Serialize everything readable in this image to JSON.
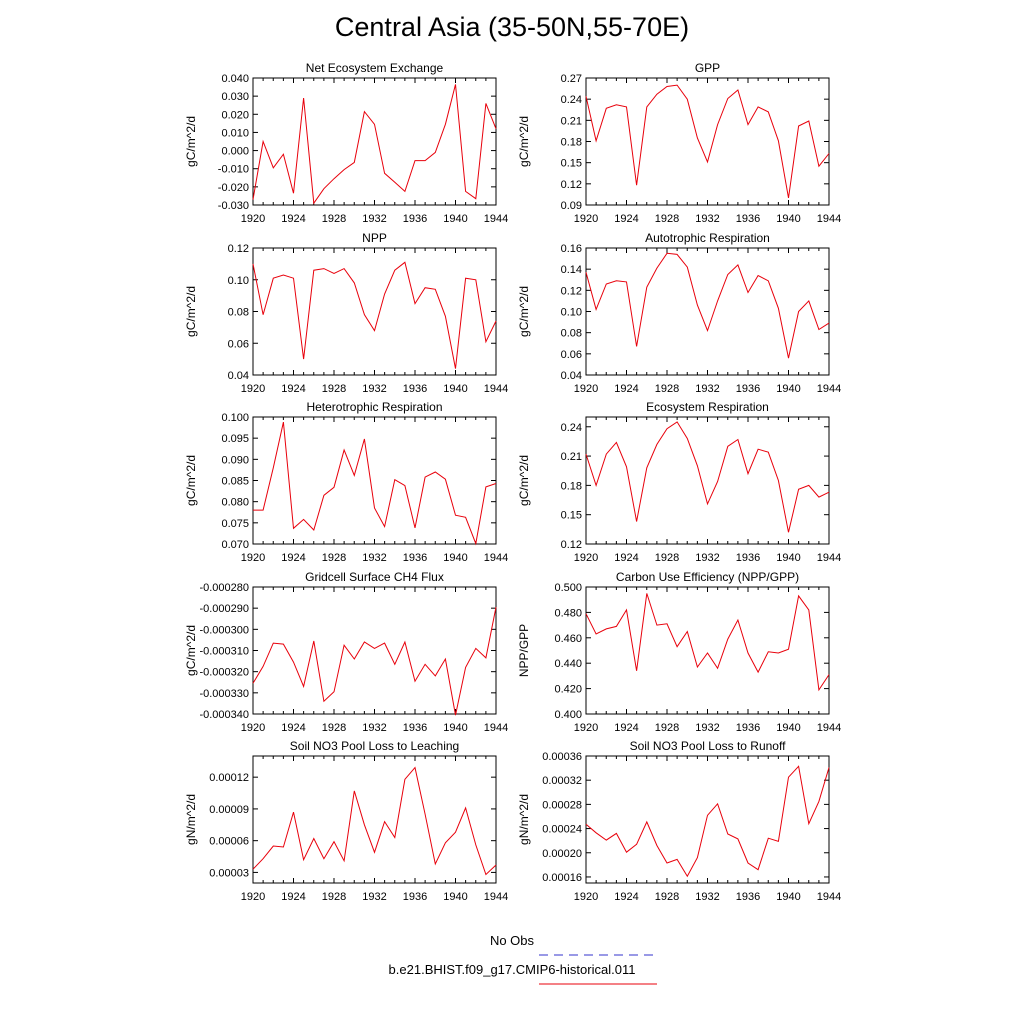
{
  "title": "Central Asia (35-50N,55-70E)",
  "legend": {
    "obs_label": "No Obs",
    "obs_color": "#3333cc",
    "run_label": "b.e21.BHIST.f09_g17.CMIP6-historical.011",
    "run_color": "#e8000b"
  },
  "chart_data": [
    {
      "type": "line",
      "title": "Net Ecosystem Exchange",
      "ylabel": "gC/m^2/d",
      "ylim": [
        -0.03,
        0.04
      ],
      "yticks": [
        "0.040",
        "0.030",
        "0.020",
        "0.010",
        "0.000",
        "-0.010",
        "-0.020",
        "-0.030"
      ],
      "ytick_values": [
        0.04,
        0.03,
        0.02,
        0.01,
        0.0,
        -0.01,
        -0.02,
        -0.03
      ],
      "xlim": [
        1920,
        1944
      ],
      "xticks": [
        "1920",
        "1924",
        "1928",
        "1932",
        "1936",
        "1940",
        "1944"
      ],
      "x": [
        1920,
        1921,
        1922,
        1923,
        1924,
        1925,
        1926,
        1927,
        1928,
        1929,
        1930,
        1931,
        1932,
        1933,
        1934,
        1935,
        1936,
        1937,
        1938,
        1939,
        1940,
        1941,
        1942,
        1943,
        1944
      ],
      "series": [
        {
          "values": [
            -0.027,
            0.005,
            -0.0095,
            -0.002,
            -0.0235,
            0.029,
            -0.029,
            -0.021,
            -0.0155,
            -0.0105,
            -0.0065,
            0.0215,
            0.0145,
            -0.0125,
            -0.0175,
            -0.0225,
            -0.0055,
            -0.0055,
            -0.001,
            0.0145,
            0.0365,
            -0.0225,
            -0.0265,
            0.026,
            0.012
          ]
        }
      ]
    },
    {
      "type": "line",
      "title": "GPP",
      "ylabel": "gC/m^2/d",
      "ylim": [
        0.09,
        0.27
      ],
      "yticks": [
        "0.27",
        "0.24",
        "0.21",
        "0.18",
        "0.15",
        "0.12",
        "0.09"
      ],
      "ytick_values": [
        0.27,
        0.24,
        0.21,
        0.18,
        0.15,
        0.12,
        0.09
      ],
      "xlim": [
        1920,
        1944
      ],
      "xticks": [
        "1920",
        "1924",
        "1928",
        "1932",
        "1936",
        "1940",
        "1944"
      ],
      "x": [
        1920,
        1921,
        1922,
        1923,
        1924,
        1925,
        1926,
        1927,
        1928,
        1929,
        1930,
        1931,
        1932,
        1933,
        1934,
        1935,
        1936,
        1937,
        1938,
        1939,
        1940,
        1941,
        1942,
        1943,
        1944
      ],
      "series": [
        {
          "values": [
            0.244,
            0.181,
            0.227,
            0.232,
            0.229,
            0.118,
            0.229,
            0.247,
            0.258,
            0.26,
            0.24,
            0.185,
            0.151,
            0.204,
            0.241,
            0.253,
            0.204,
            0.229,
            0.222,
            0.181,
            0.1,
            0.202,
            0.209,
            0.145,
            0.163
          ]
        }
      ]
    },
    {
      "type": "line",
      "title": "NPP",
      "ylabel": "gC/m^2/d",
      "ylim": [
        0.04,
        0.12
      ],
      "yticks": [
        "0.12",
        "0.10",
        "0.08",
        "0.06",
        "0.04"
      ],
      "ytick_values": [
        0.12,
        0.1,
        0.08,
        0.06,
        0.04
      ],
      "xlim": [
        1920,
        1944
      ],
      "xticks": [
        "1920",
        "1924",
        "1928",
        "1932",
        "1936",
        "1940",
        "1944"
      ],
      "x": [
        1920,
        1921,
        1922,
        1923,
        1924,
        1925,
        1926,
        1927,
        1928,
        1929,
        1930,
        1931,
        1932,
        1933,
        1934,
        1935,
        1936,
        1937,
        1938,
        1939,
        1940,
        1941,
        1942,
        1943,
        1944
      ],
      "series": [
        {
          "values": [
            0.11,
            0.078,
            0.101,
            0.103,
            0.101,
            0.05,
            0.106,
            0.107,
            0.104,
            0.107,
            0.098,
            0.078,
            0.068,
            0.091,
            0.106,
            0.111,
            0.085,
            0.095,
            0.094,
            0.077,
            0.044,
            0.101,
            0.1,
            0.061,
            0.074
          ]
        }
      ]
    },
    {
      "type": "line",
      "title": "Autotrophic Respiration",
      "ylabel": "gC/m^2/d",
      "ylim": [
        0.04,
        0.16
      ],
      "yticks": [
        "0.16",
        "0.14",
        "0.12",
        "0.10",
        "0.08",
        "0.06",
        "0.04"
      ],
      "ytick_values": [
        0.16,
        0.14,
        0.12,
        0.1,
        0.08,
        0.06,
        0.04
      ],
      "xlim": [
        1920,
        1944
      ],
      "xticks": [
        "1920",
        "1924",
        "1928",
        "1932",
        "1936",
        "1940",
        "1944"
      ],
      "x": [
        1920,
        1921,
        1922,
        1923,
        1924,
        1925,
        1926,
        1927,
        1928,
        1929,
        1930,
        1931,
        1932,
        1933,
        1934,
        1935,
        1936,
        1937,
        1938,
        1939,
        1940,
        1941,
        1942,
        1943,
        1944
      ],
      "series": [
        {
          "values": [
            0.137,
            0.102,
            0.126,
            0.129,
            0.128,
            0.067,
            0.123,
            0.141,
            0.155,
            0.154,
            0.142,
            0.106,
            0.082,
            0.11,
            0.135,
            0.144,
            0.118,
            0.134,
            0.129,
            0.103,
            0.056,
            0.1,
            0.11,
            0.083,
            0.089
          ]
        }
      ]
    },
    {
      "type": "line",
      "title": "Heterotrophic Respiration",
      "ylabel": "gC/m^2/d",
      "ylim": [
        0.07,
        0.1
      ],
      "yticks": [
        "0.100",
        "0.095",
        "0.090",
        "0.085",
        "0.080",
        "0.075",
        "0.070"
      ],
      "ytick_values": [
        0.1,
        0.095,
        0.09,
        0.085,
        0.08,
        0.075,
        0.07
      ],
      "xlim": [
        1920,
        1944
      ],
      "xticks": [
        "1920",
        "1924",
        "1928",
        "1932",
        "1936",
        "1940",
        "1944"
      ],
      "x": [
        1920,
        1921,
        1922,
        1923,
        1924,
        1925,
        1926,
        1927,
        1928,
        1929,
        1930,
        1931,
        1932,
        1933,
        1934,
        1935,
        1936,
        1937,
        1938,
        1939,
        1940,
        1941,
        1942,
        1943,
        1944
      ],
      "series": [
        {
          "values": [
            0.078,
            0.078,
            0.088,
            0.0988,
            0.0737,
            0.0758,
            0.0733,
            0.0815,
            0.0834,
            0.0922,
            0.0862,
            0.0948,
            0.0785,
            0.0741,
            0.0852,
            0.0838,
            0.0738,
            0.0858,
            0.087,
            0.0853,
            0.0768,
            0.0763,
            0.0701,
            0.0835,
            0.0843
          ]
        }
      ]
    },
    {
      "type": "line",
      "title": "Ecosystem Respiration",
      "ylabel": "gC/m^2/d",
      "ylim": [
        0.12,
        0.25
      ],
      "yticks": [
        "0.24",
        "0.21",
        "0.18",
        "0.15",
        "0.12"
      ],
      "ytick_values": [
        0.24,
        0.21,
        0.18,
        0.15,
        0.12
      ],
      "xlim": [
        1920,
        1944
      ],
      "xticks": [
        "1920",
        "1924",
        "1928",
        "1932",
        "1936",
        "1940",
        "1944"
      ],
      "x": [
        1920,
        1921,
        1922,
        1923,
        1924,
        1925,
        1926,
        1927,
        1928,
        1929,
        1930,
        1931,
        1932,
        1933,
        1934,
        1935,
        1936,
        1937,
        1938,
        1939,
        1940,
        1941,
        1942,
        1943,
        1944
      ],
      "series": [
        {
          "values": [
            0.212,
            0.18,
            0.212,
            0.224,
            0.199,
            0.143,
            0.198,
            0.222,
            0.238,
            0.245,
            0.228,
            0.2,
            0.161,
            0.184,
            0.22,
            0.227,
            0.192,
            0.217,
            0.214,
            0.185,
            0.132,
            0.176,
            0.18,
            0.168,
            0.173
          ]
        }
      ]
    },
    {
      "type": "line",
      "title": "Gridcell Surface CH4 Flux",
      "ylabel": "gC/m^2/d",
      "ylim": [
        -0.00034,
        -0.00028
      ],
      "yticks": [
        "-0.000280",
        "-0.000290",
        "-0.000300",
        "-0.000310",
        "-0.000320",
        "-0.000330",
        "-0.000340"
      ],
      "ytick_values": [
        -0.00028,
        -0.00029,
        -0.0003,
        -0.00031,
        -0.00032,
        -0.00033,
        -0.00034
      ],
      "xlim": [
        1920,
        1944
      ],
      "xticks": [
        "1920",
        "1924",
        "1928",
        "1932",
        "1936",
        "1940",
        "1944"
      ],
      "x": [
        1920,
        1921,
        1922,
        1923,
        1924,
        1925,
        1926,
        1927,
        1928,
        1929,
        1930,
        1931,
        1932,
        1933,
        1934,
        1935,
        1936,
        1937,
        1938,
        1939,
        1940,
        1941,
        1942,
        1943,
        1944
      ],
      "series": [
        {
          "values": [
            -0.0003255,
            -0.0003175,
            -0.0003065,
            -0.000307,
            -0.0003155,
            -0.000327,
            -0.0003055,
            -0.000334,
            -0.0003295,
            -0.0003075,
            -0.000314,
            -0.000306,
            -0.000309,
            -0.0003065,
            -0.0003165,
            -0.000306,
            -0.0003245,
            -0.0003165,
            -0.000322,
            -0.000314,
            -0.0003405,
            -0.000318,
            -0.000309,
            -0.0003135,
            -0.0002895
          ]
        }
      ]
    },
    {
      "type": "line",
      "title": "Carbon Use Efficiency (NPP/GPP)",
      "ylabel": "NPP/GPP",
      "ylim": [
        0.4,
        0.5
      ],
      "yticks": [
        "0.500",
        "0.480",
        "0.460",
        "0.440",
        "0.420",
        "0.400"
      ],
      "ytick_values": [
        0.5,
        0.48,
        0.46,
        0.44,
        0.42,
        0.4
      ],
      "xlim": [
        1920,
        1944
      ],
      "xticks": [
        "1920",
        "1924",
        "1928",
        "1932",
        "1936",
        "1940",
        "1944"
      ],
      "x": [
        1920,
        1921,
        1922,
        1923,
        1924,
        1925,
        1926,
        1927,
        1928,
        1929,
        1930,
        1931,
        1932,
        1933,
        1934,
        1935,
        1936,
        1937,
        1938,
        1939,
        1940,
        1941,
        1942,
        1943,
        1944
      ],
      "series": [
        {
          "values": [
            0.479,
            0.463,
            0.467,
            0.469,
            0.482,
            0.434,
            0.495,
            0.47,
            0.471,
            0.453,
            0.465,
            0.437,
            0.448,
            0.436,
            0.459,
            0.474,
            0.448,
            0.433,
            0.449,
            0.448,
            0.451,
            0.493,
            0.482,
            0.419,
            0.431
          ]
        }
      ]
    },
    {
      "type": "line",
      "title": "Soil NO3 Pool Loss to Leaching",
      "ylabel": "gN/m^2/d",
      "ylim": [
        2e-05,
        0.00014
      ],
      "yticks": [
        "0.00012",
        "0.00009",
        "0.00006",
        "0.00003"
      ],
      "ytick_values": [
        0.00012,
        9e-05,
        6e-05,
        3e-05
      ],
      "xlim": [
        1920,
        1944
      ],
      "xticks": [
        "1920",
        "1924",
        "1928",
        "1932",
        "1936",
        "1940",
        "1944"
      ],
      "x": [
        1920,
        1921,
        1922,
        1923,
        1924,
        1925,
        1926,
        1927,
        1928,
        1929,
        1930,
        1931,
        1932,
        1933,
        1934,
        1935,
        1936,
        1937,
        1938,
        1939,
        1940,
        1941,
        1942,
        1943,
        1944
      ],
      "series": [
        {
          "values": [
            3.3e-05,
            4.3e-05,
            5.5e-05,
            5.4e-05,
            8.7e-05,
            4.2e-05,
            6.2e-05,
            4.3e-05,
            5.9e-05,
            4.1e-05,
            0.000107,
            7.5e-05,
            4.9e-05,
            7.8e-05,
            6.3e-05,
            0.000118,
            0.000129,
            8.5e-05,
            3.8e-05,
            5.8e-05,
            6.8e-05,
            9.1e-05,
            5.6e-05,
            2.8e-05,
            3.7e-05
          ]
        }
      ]
    },
    {
      "type": "line",
      "title": "Soil NO3 Pool Loss to Runoff",
      "ylabel": "gN/m^2/d",
      "ylim": [
        0.00015,
        0.00036
      ],
      "yticks": [
        "0.00036",
        "0.00032",
        "0.00028",
        "0.00024",
        "0.00020",
        "0.00016"
      ],
      "ytick_values": [
        0.00036,
        0.00032,
        0.00028,
        0.00024,
        0.0002,
        0.00016
      ],
      "xlim": [
        1920,
        1944
      ],
      "xticks": [
        "1920",
        "1924",
        "1928",
        "1932",
        "1936",
        "1940",
        "1944"
      ],
      "x": [
        1920,
        1921,
        1922,
        1923,
        1924,
        1925,
        1926,
        1927,
        1928,
        1929,
        1930,
        1931,
        1932,
        1933,
        1934,
        1935,
        1936,
        1937,
        1938,
        1939,
        1940,
        1941,
        1942,
        1943,
        1944
      ],
      "series": [
        {
          "values": [
            0.000247,
            0.000233,
            0.000221,
            0.000232,
            0.000201,
            0.000214,
            0.000251,
            0.000212,
            0.000183,
            0.000189,
            0.000161,
            0.000192,
            0.000262,
            0.000281,
            0.000231,
            0.000223,
            0.000183,
            0.000172,
            0.000224,
            0.000219,
            0.000325,
            0.000343,
            0.000248,
            0.000285,
            0.000341
          ]
        }
      ]
    }
  ]
}
